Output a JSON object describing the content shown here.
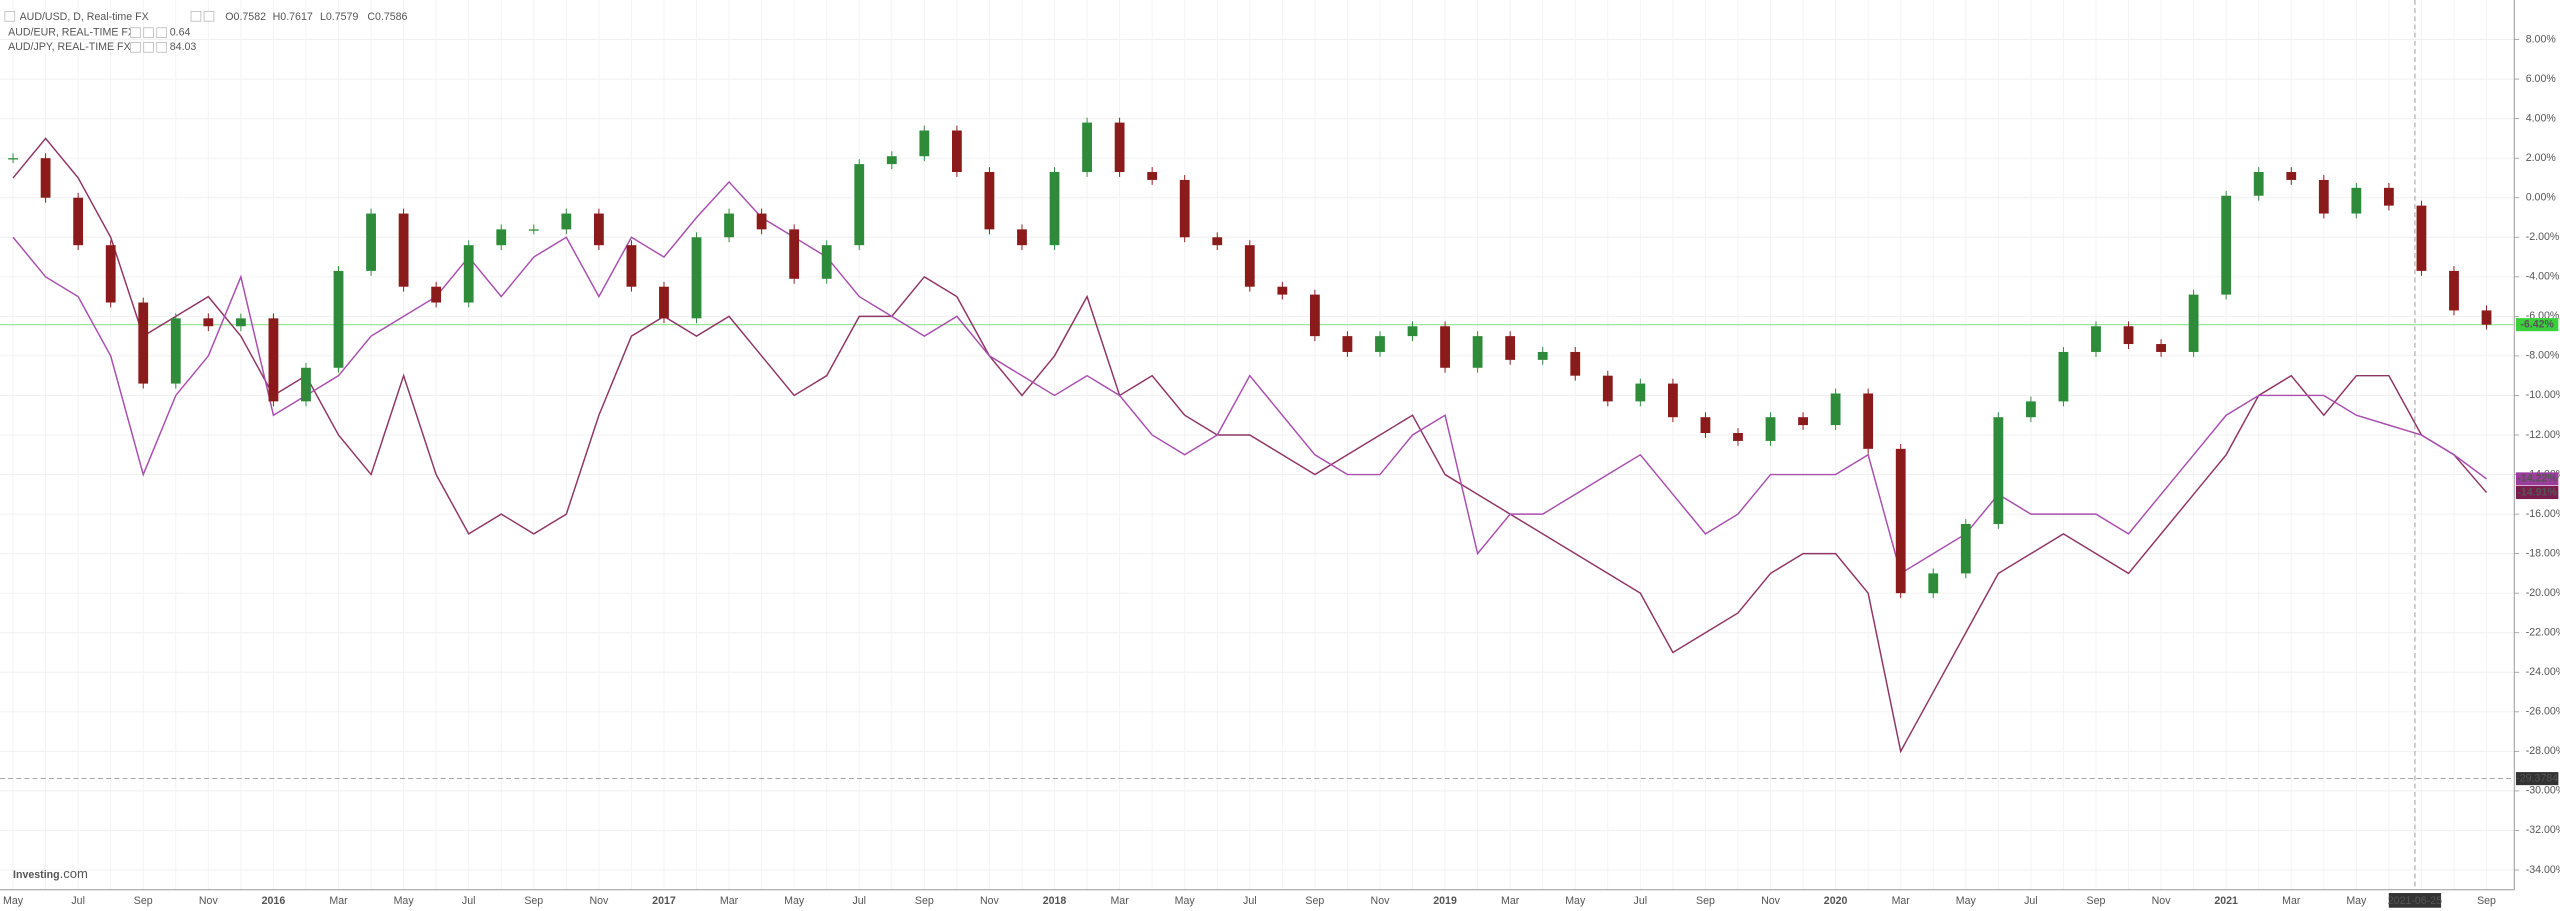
{
  "chart_data": {
    "type": "line",
    "categories": [
      "May",
      null,
      "Jul",
      null,
      "Sep",
      null,
      "Nov",
      null,
      "2016",
      null,
      "Mar",
      null,
      "May",
      null,
      "Jul",
      null,
      "Sep",
      null,
      "Nov",
      null,
      "2017",
      null,
      "Mar",
      null,
      "May",
      null,
      "Jul",
      null,
      "Sep",
      null,
      "Nov",
      null,
      "2018",
      null,
      "Mar",
      null,
      "May",
      null,
      "Jul",
      null,
      "Sep",
      null,
      "Nov",
      null,
      "2019",
      null,
      "Mar",
      null,
      "May",
      null,
      "Jul",
      null,
      "Sep",
      null,
      "Nov",
      null,
      "2020",
      null,
      "Mar",
      null,
      "May",
      null,
      "Jul",
      null,
      "Sep",
      null,
      "Nov",
      null,
      "2021",
      null,
      "Mar",
      null,
      "May",
      null,
      null,
      null,
      "Sep"
    ],
    "series": [
      {
        "name": "AUD/USD, D, Real-time FX",
        "type": "candlestick",
        "color": "#2e8b3a",
        "down_color": "#8b1a1a",
        "quote": [
          "O0.7582",
          "H0.7617",
          "L0.7579",
          "C0.7586"
        ],
        "quote_color": "#2e7d32",
        "last_label": "-6.42%",
        "tag_color": "#3ccf3c",
        "values": [
          2,
          0,
          -2.4,
          -5.3,
          -9.4,
          -6.1,
          -6.5,
          -6.1,
          -10.3,
          -8.6,
          -3.7,
          -0.8,
          -4.5,
          -5.3,
          -2.4,
          -1.6,
          -1.6,
          -0.8,
          -2.4,
          -4.5,
          -6.1,
          -2,
          -0.8,
          -1.6,
          -4.1,
          -2.4,
          1.7,
          2.1,
          3.4,
          1.3,
          -1.6,
          -2.4,
          1.3,
          3.8,
          1.3,
          0.9,
          -2,
          -2.4,
          -4.5,
          -4.9,
          -7,
          -7.8,
          -7,
          -6.5,
          -8.6,
          -7,
          -8.2,
          -7.8,
          -9,
          -10.3,
          -9.4,
          -11.1,
          -11.9,
          -12.3,
          -11.1,
          -11.5,
          -9.9,
          -12.7,
          -20,
          -19,
          -16.5,
          -11.1,
          -10.3,
          -7.8,
          -6.5,
          -7.4,
          -7.8,
          -4.9,
          0.1,
          1.3,
          0.9,
          -0.8,
          0.5,
          -0.4,
          -3.7,
          -5.7,
          -6.42
        ]
      },
      {
        "name": "AUD/EUR, REAL-TIME FX",
        "color": "#a84fae",
        "quote": "0.64",
        "last_label": "-14.22%",
        "tag_color": "#9b3d9b",
        "values": [
          -2,
          -4,
          -5,
          -8,
          -14,
          -10,
          -8,
          -4,
          -11,
          -10,
          -9,
          -7,
          -6,
          -5,
          -3,
          -5,
          -3,
          -2,
          -5,
          -2,
          -3,
          -1,
          0.8,
          -1,
          -2,
          -3,
          -5,
          -6,
          -7,
          -6,
          -8,
          -9,
          -10,
          -9,
          -10,
          -12,
          -13,
          -12,
          -9,
          -11,
          -13,
          -14,
          -14,
          -12,
          -11,
          -18,
          -16,
          -16,
          -15,
          -14,
          -13,
          -15,
          -17,
          -16,
          -14,
          -14,
          -14,
          -13,
          -19,
          -18,
          -17,
          -15,
          -16,
          -16,
          -16,
          -17,
          -15,
          -13,
          -11,
          -10,
          -10,
          -10,
          -11,
          -11.5,
          -12,
          -13,
          -14.22
        ]
      },
      {
        "name": "AUD/JPY, REAL-TIME FX",
        "color": "#8e3566",
        "quote": "84.03",
        "last_label": "-14.91%",
        "tag_color": "#7b1c4e",
        "values": [
          1,
          3,
          1,
          -2,
          -7,
          -6,
          -5,
          -7,
          -10,
          -9,
          -12,
          -14,
          -9,
          -14,
          -17,
          -16,
          -17,
          -16,
          -11,
          -7,
          -6,
          -7,
          -6,
          -8,
          -10,
          -9,
          -6,
          -6,
          -4,
          -5,
          -8,
          -10,
          -8,
          -5,
          -10,
          -9,
          -11,
          -12,
          -12,
          -13,
          -14,
          -13,
          -12,
          -11,
          -14,
          -15,
          -16,
          -17,
          -18,
          -19,
          -20,
          -23,
          -22,
          -21,
          -19,
          -18,
          -18,
          -20,
          -28,
          -25,
          -22,
          -19,
          -18,
          -17,
          -18,
          -19,
          -17,
          -15,
          -13,
          -10,
          -9,
          -11,
          -9,
          -9,
          -12,
          -13,
          -14.91
        ]
      }
    ],
    "ylim": [
      -35,
      10
    ],
    "yticks": [
      {
        "value": 8,
        "label": "8.00%"
      },
      {
        "value": 6,
        "label": "6.00%"
      },
      {
        "value": 4,
        "label": "4.00%"
      },
      {
        "value": 2,
        "label": "2.00%"
      },
      {
        "value": 0,
        "label": "0.00%"
      },
      {
        "value": -2,
        "label": "-2.00%"
      },
      {
        "value": -4,
        "label": "-4.00%"
      },
      {
        "value": -6,
        "label": "-6.00%"
      },
      {
        "value": -8,
        "label": "-8.00%"
      },
      {
        "value": -10,
        "label": "-10.00%"
      },
      {
        "value": -12,
        "label": "-12.00%"
      },
      {
        "value": -14,
        "label": "-14.00%"
      },
      {
        "value": -16,
        "label": "-16.00%"
      },
      {
        "value": -18,
        "label": "-18.00%"
      },
      {
        "value": -20,
        "label": "-20.00%"
      },
      {
        "value": -22,
        "label": "-22.00%"
      },
      {
        "value": -24,
        "label": "-24.00%"
      },
      {
        "value": -26,
        "label": "-26.00%"
      },
      {
        "value": -28,
        "label": "-28.00%"
      },
      {
        "value": -30,
        "label": "-30.00%"
      },
      {
        "value": -32,
        "label": "-32.00%"
      },
      {
        "value": -34,
        "label": "-34.00%"
      }
    ],
    "grid": true,
    "crosshair": {
      "x_label": "2021-06-25",
      "y": -29.3784
    },
    "logo": {
      "main": "Investing",
      "suffix": ".com"
    }
  }
}
